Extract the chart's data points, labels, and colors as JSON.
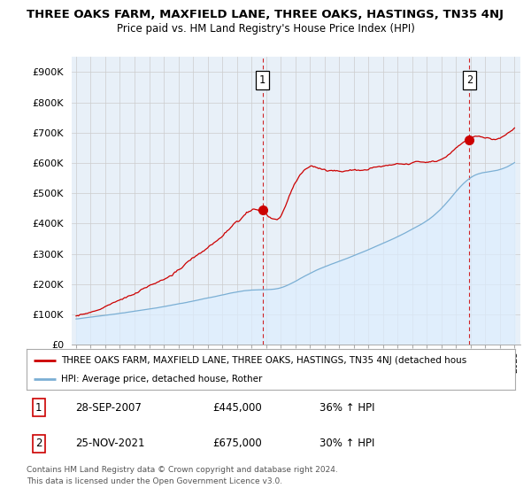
{
  "title": "THREE OAKS FARM, MAXFIELD LANE, THREE OAKS, HASTINGS, TN35 4NJ",
  "subtitle": "Price paid vs. HM Land Registry's House Price Index (HPI)",
  "ylabel_ticks": [
    "£0",
    "£100K",
    "£200K",
    "£300K",
    "£400K",
    "£500K",
    "£600K",
    "£700K",
    "£800K",
    "£900K"
  ],
  "ytick_values": [
    0,
    100000,
    200000,
    300000,
    400000,
    500000,
    600000,
    700000,
    800000,
    900000
  ],
  "ylim": [
    0,
    950000
  ],
  "red_color": "#cc0000",
  "blue_color": "#7bafd4",
  "blue_fill_color": "#ddeeff",
  "marker1_date": 2007.75,
  "marker1_price": 445000,
  "marker2_date": 2021.9,
  "marker2_price": 675000,
  "legend_label_red": "THREE OAKS FARM, MAXFIELD LANE, THREE OAKS, HASTINGS, TN35 4NJ (detached hous",
  "legend_label_blue": "HPI: Average price, detached house, Rother",
  "table_row1": [
    "1",
    "28-SEP-2007",
    "£445,000",
    "36% ↑ HPI"
  ],
  "table_row2": [
    "2",
    "25-NOV-2021",
    "£675,000",
    "30% ↑ HPI"
  ],
  "footer1": "Contains HM Land Registry data © Crown copyright and database right 2024.",
  "footer2": "This data is licensed under the Open Government Licence v3.0.",
  "bg_color": "#ffffff",
  "grid_color": "#cccccc",
  "chart_bg": "#e8f0f8"
}
